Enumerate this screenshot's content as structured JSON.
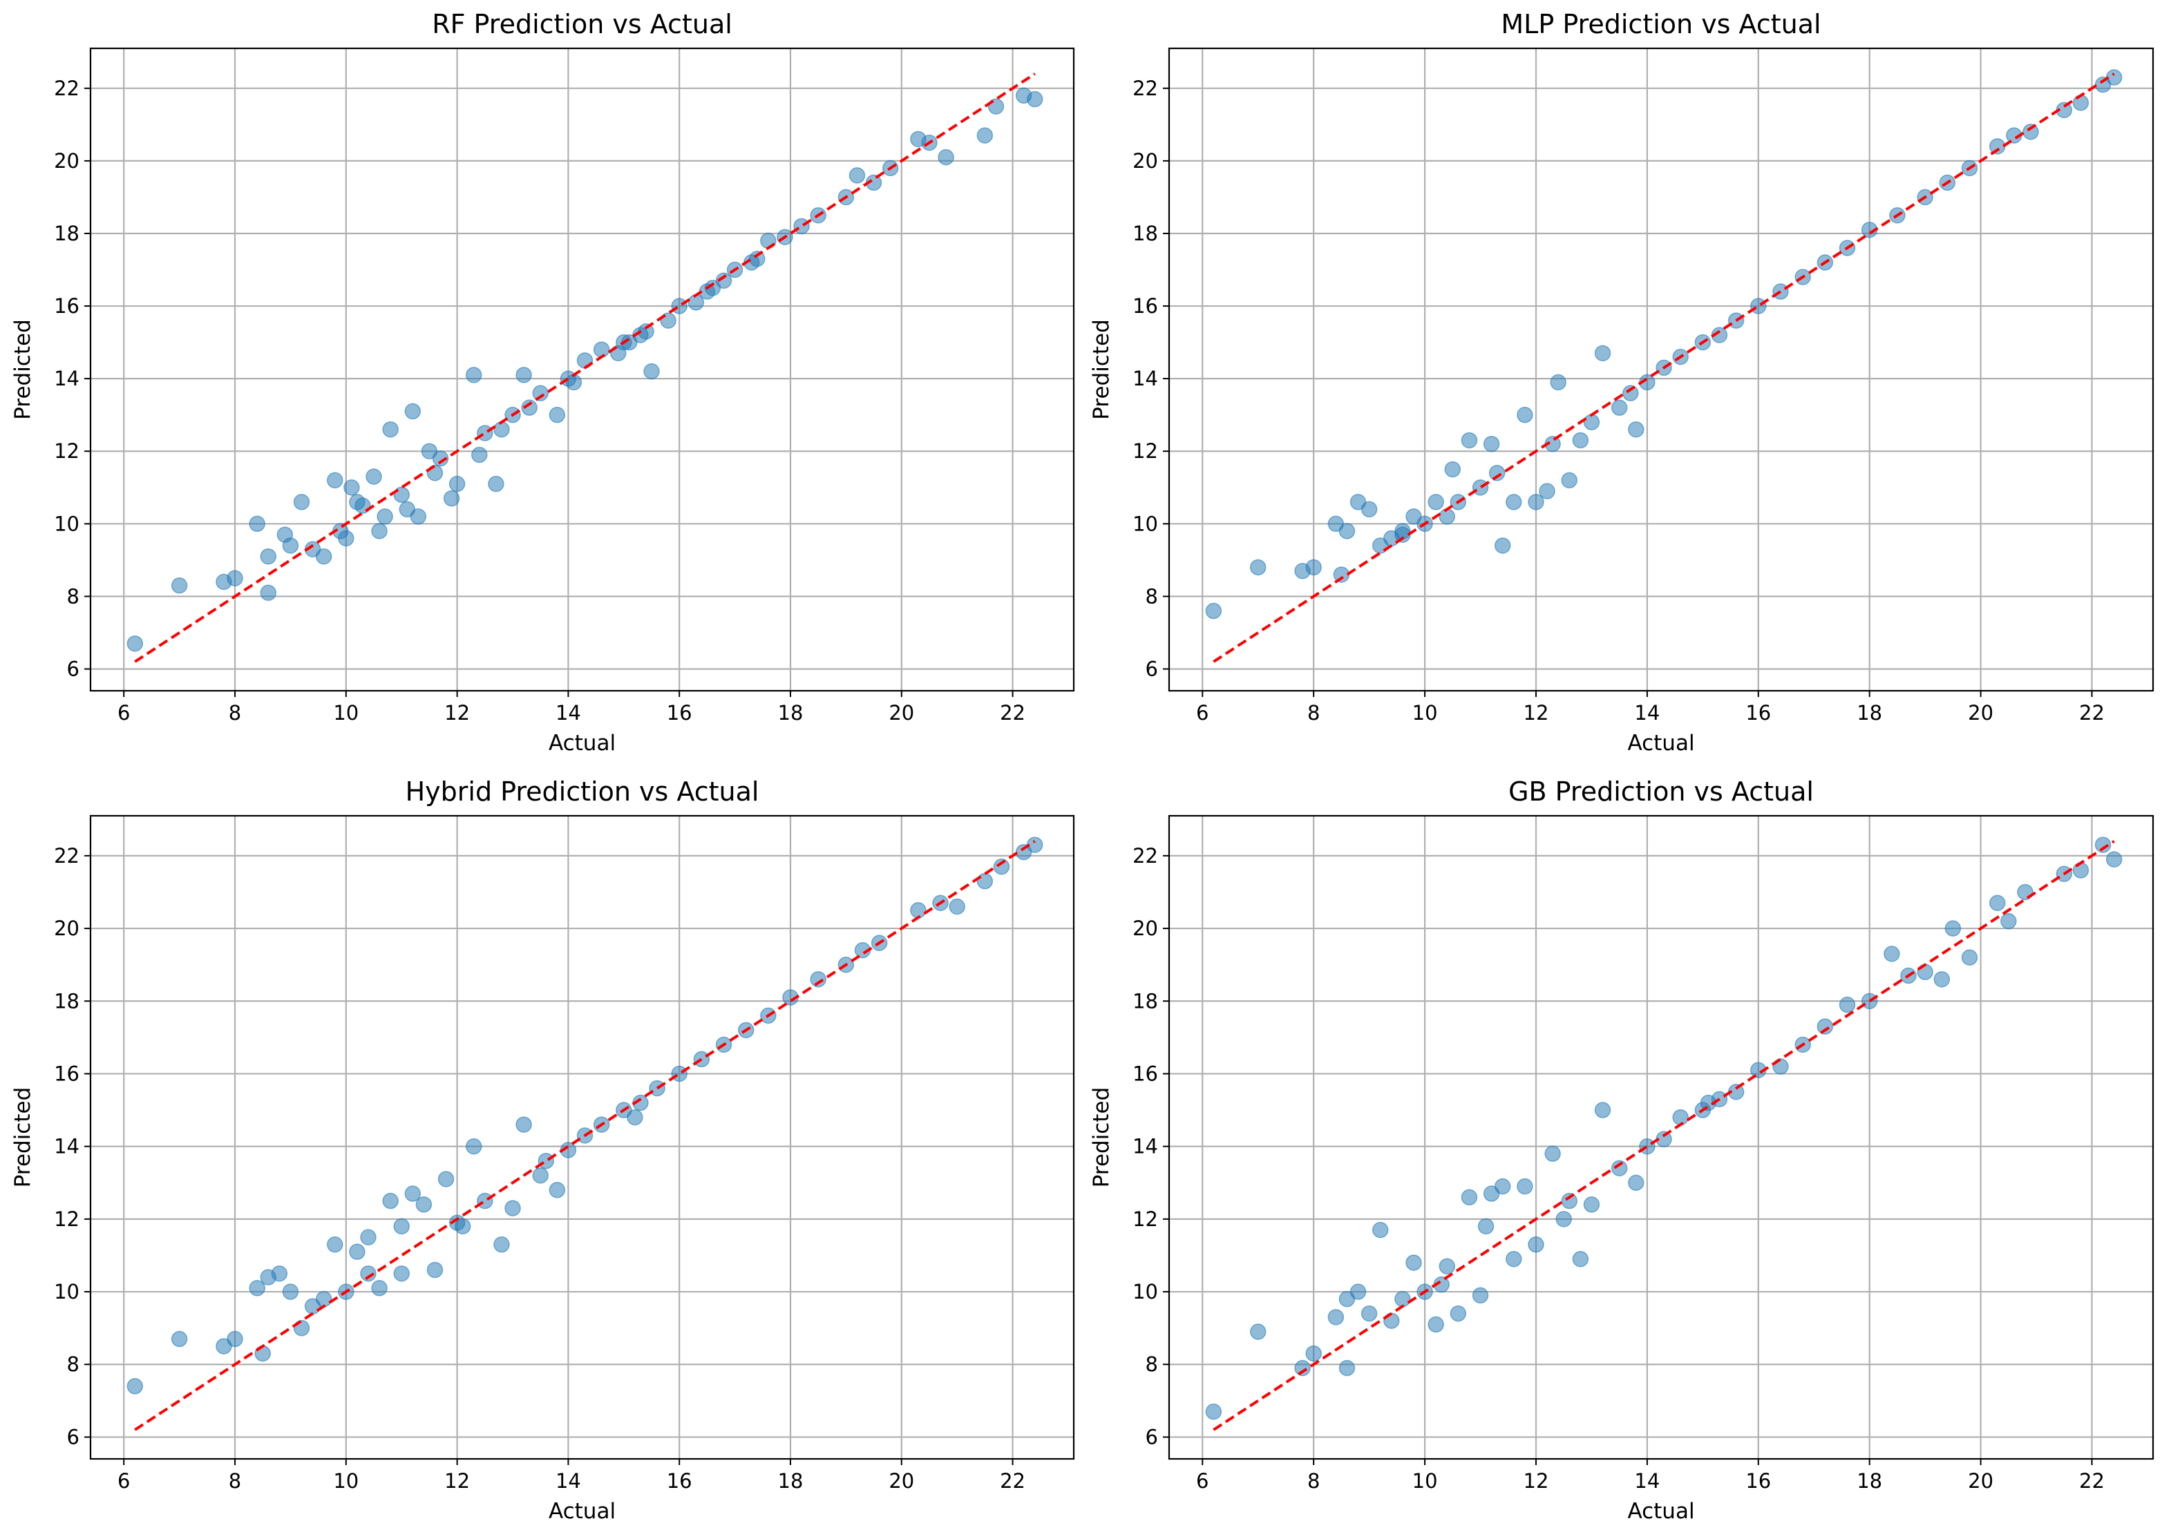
{
  "chart_data": [
    {
      "type": "scatter",
      "title": "RF Prediction vs Actual",
      "xlabel": "Actual",
      "ylabel": "Predicted",
      "xlim": [
        5.4,
        23.1
      ],
      "ylim": [
        5.4,
        23.1
      ],
      "xticks": [
        6,
        8,
        10,
        12,
        14,
        16,
        18,
        20,
        22
      ],
      "yticks": [
        6,
        8,
        10,
        12,
        14,
        16,
        18,
        20,
        22
      ],
      "grid": true,
      "reference_line": {
        "from": [
          6.2,
          6.2
        ],
        "to": [
          22.4,
          22.4
        ],
        "style": "dashed",
        "color": "#ff0000"
      },
      "x": [
        6.2,
        7.0,
        7.8,
        8.0,
        8.4,
        8.6,
        8.6,
        8.9,
        9.2,
        9.4,
        9.6,
        9.8,
        10.0,
        10.1,
        10.3,
        10.5,
        10.6,
        10.8,
        11.0,
        11.2,
        11.3,
        11.5,
        11.7,
        11.9,
        12.0,
        12.3,
        12.5,
        12.7,
        13.0,
        13.2,
        13.5,
        13.8,
        14.0,
        14.3,
        14.6,
        14.9,
        15.0,
        15.3,
        15.5,
        15.8,
        16.0,
        16.3,
        16.5,
        16.8,
        17.0,
        17.3,
        17.6,
        17.9,
        18.2,
        18.5,
        19.0,
        19.2,
        19.5,
        19.8,
        20.3,
        20.5,
        20.8,
        21.5,
        21.7,
        22.2,
        22.4,
        9.0,
        9.9,
        10.2,
        11.6,
        12.4,
        13.3,
        14.1,
        15.4,
        16.6,
        17.4,
        10.7,
        11.1,
        12.8,
        15.1
      ],
      "y": [
        6.7,
        8.3,
        8.4,
        8.5,
        10.0,
        9.1,
        8.1,
        9.7,
        10.6,
        9.3,
        9.1,
        11.2,
        9.6,
        11.0,
        10.5,
        11.3,
        9.8,
        12.6,
        10.8,
        13.1,
        10.2,
        12.0,
        11.8,
        10.7,
        11.1,
        14.1,
        12.5,
        11.1,
        13.0,
        14.1,
        13.6,
        13.0,
        14.0,
        14.5,
        14.8,
        14.7,
        15.0,
        15.2,
        14.2,
        15.6,
        16.0,
        16.1,
        16.4,
        16.7,
        17.0,
        17.2,
        17.8,
        17.9,
        18.2,
        18.5,
        19.0,
        19.6,
        19.4,
        19.8,
        20.6,
        20.5,
        20.1,
        20.7,
        21.5,
        21.8,
        21.7,
        9.4,
        9.8,
        10.6,
        11.4,
        11.9,
        13.2,
        13.9,
        15.3,
        16.5,
        17.3,
        10.2,
        10.4,
        12.6,
        15.0
      ]
    },
    {
      "type": "scatter",
      "title": "MLP Prediction vs Actual",
      "xlabel": "Actual",
      "ylabel": "Predicted",
      "xlim": [
        5.4,
        23.1
      ],
      "ylim": [
        5.4,
        23.1
      ],
      "xticks": [
        6,
        8,
        10,
        12,
        14,
        16,
        18,
        20,
        22
      ],
      "yticks": [
        6,
        8,
        10,
        12,
        14,
        16,
        18,
        20,
        22
      ],
      "grid": true,
      "reference_line": {
        "from": [
          6.2,
          6.2
        ],
        "to": [
          22.4,
          22.4
        ],
        "style": "dashed",
        "color": "#ff0000"
      },
      "x": [
        6.2,
        7.0,
        7.8,
        8.0,
        8.4,
        8.5,
        8.6,
        8.8,
        9.0,
        9.2,
        9.4,
        9.6,
        9.8,
        10.0,
        10.2,
        10.4,
        10.6,
        10.8,
        11.0,
        11.2,
        11.4,
        11.6,
        11.8,
        12.0,
        12.2,
        12.4,
        12.6,
        12.8,
        13.0,
        13.2,
        13.5,
        13.8,
        14.0,
        14.3,
        14.6,
        15.0,
        15.3,
        15.6,
        16.0,
        16.4,
        16.8,
        17.2,
        17.6,
        18.0,
        18.5,
        19.0,
        19.4,
        19.8,
        20.3,
        20.6,
        20.9,
        21.5,
        21.8,
        22.2,
        22.4,
        10.5,
        11.3,
        12.3,
        13.7,
        9.6
      ],
      "y": [
        7.6,
        8.8,
        8.7,
        8.8,
        10.0,
        8.6,
        9.8,
        10.6,
        10.4,
        9.4,
        9.6,
        9.8,
        10.2,
        10.0,
        10.6,
        10.2,
        10.6,
        12.3,
        11.0,
        12.2,
        9.4,
        10.6,
        13.0,
        10.6,
        10.9,
        13.9,
        11.2,
        12.3,
        12.8,
        14.7,
        13.2,
        12.6,
        13.9,
        14.3,
        14.6,
        15.0,
        15.2,
        15.6,
        16.0,
        16.4,
        16.8,
        17.2,
        17.6,
        18.1,
        18.5,
        19.0,
        19.4,
        19.8,
        20.4,
        20.7,
        20.8,
        21.4,
        21.6,
        22.1,
        22.3,
        11.5,
        11.4,
        12.2,
        13.6,
        9.7
      ]
    },
    {
      "type": "scatter",
      "title": "Hybrid Prediction vs Actual",
      "xlabel": "Actual",
      "ylabel": "Predicted",
      "xlim": [
        5.4,
        23.1
      ],
      "ylim": [
        5.4,
        23.1
      ],
      "xticks": [
        6,
        8,
        10,
        12,
        14,
        16,
        18,
        20,
        22
      ],
      "yticks": [
        6,
        8,
        10,
        12,
        14,
        16,
        18,
        20,
        22
      ],
      "grid": true,
      "reference_line": {
        "from": [
          6.2,
          6.2
        ],
        "to": [
          22.4,
          22.4
        ],
        "style": "dashed",
        "color": "#ff0000"
      },
      "x": [
        6.2,
        7.0,
        7.8,
        8.0,
        8.4,
        8.5,
        8.6,
        8.8,
        9.0,
        9.2,
        9.4,
        9.6,
        9.8,
        10.0,
        10.2,
        10.4,
        10.6,
        10.8,
        11.0,
        11.2,
        11.4,
        11.6,
        11.8,
        12.0,
        12.3,
        12.5,
        12.8,
        13.0,
        13.2,
        13.5,
        13.8,
        14.0,
        14.3,
        14.6,
        15.0,
        15.3,
        15.6,
        16.0,
        16.4,
        16.8,
        17.2,
        17.6,
        18.0,
        18.5,
        19.0,
        19.3,
        19.6,
        20.3,
        20.7,
        21.0,
        21.5,
        21.8,
        22.2,
        22.4,
        10.4,
        11.0,
        12.1,
        13.6,
        15.2
      ],
      "y": [
        7.4,
        8.7,
        8.5,
        8.7,
        10.1,
        8.3,
        10.4,
        10.5,
        10.0,
        9.0,
        9.6,
        9.8,
        11.3,
        10.0,
        11.1,
        10.5,
        10.1,
        12.5,
        10.5,
        12.7,
        12.4,
        10.6,
        13.1,
        11.9,
        14.0,
        12.5,
        11.3,
        12.3,
        14.6,
        13.2,
        12.8,
        13.9,
        14.3,
        14.6,
        15.0,
        15.2,
        15.6,
        16.0,
        16.4,
        16.8,
        17.2,
        17.6,
        18.1,
        18.6,
        19.0,
        19.4,
        19.6,
        20.5,
        20.7,
        20.6,
        21.3,
        21.7,
        22.1,
        22.3,
        11.5,
        11.8,
        11.8,
        13.6,
        14.8
      ]
    },
    {
      "type": "scatter",
      "title": "GB Prediction vs Actual",
      "xlabel": "Actual",
      "ylabel": "Predicted",
      "xlim": [
        5.4,
        23.1
      ],
      "ylim": [
        5.4,
        23.1
      ],
      "xticks": [
        6,
        8,
        10,
        12,
        14,
        16,
        18,
        20,
        22
      ],
      "yticks": [
        6,
        8,
        10,
        12,
        14,
        16,
        18,
        20,
        22
      ],
      "grid": true,
      "reference_line": {
        "from": [
          6.2,
          6.2
        ],
        "to": [
          22.4,
          22.4
        ],
        "style": "dashed",
        "color": "#ff0000"
      },
      "x": [
        6.2,
        7.0,
        7.8,
        8.0,
        8.4,
        8.6,
        8.6,
        8.8,
        9.0,
        9.2,
        9.4,
        9.6,
        9.8,
        10.0,
        10.2,
        10.4,
        10.6,
        10.8,
        11.0,
        11.2,
        11.4,
        11.6,
        11.8,
        12.0,
        12.3,
        12.5,
        12.8,
        13.0,
        13.2,
        13.5,
        13.8,
        14.0,
        14.3,
        14.6,
        15.0,
        15.3,
        15.6,
        16.0,
        16.4,
        16.8,
        17.2,
        17.6,
        18.0,
        18.4,
        18.7,
        19.0,
        19.3,
        19.5,
        19.8,
        20.3,
        20.5,
        20.8,
        21.5,
        21.8,
        22.2,
        22.4,
        10.3,
        11.1,
        12.6,
        15.1
      ],
      "y": [
        6.7,
        8.9,
        7.9,
        8.3,
        9.3,
        7.9,
        9.8,
        10.0,
        9.4,
        11.7,
        9.2,
        9.8,
        10.8,
        10.0,
        9.1,
        10.7,
        9.4,
        12.6,
        9.9,
        12.7,
        12.9,
        10.9,
        12.9,
        11.3,
        13.8,
        12.0,
        10.9,
        12.4,
        15.0,
        13.4,
        13.0,
        14.0,
        14.2,
        14.8,
        15.0,
        15.3,
        15.5,
        16.1,
        16.2,
        16.8,
        17.3,
        17.9,
        18.0,
        19.3,
        18.7,
        18.8,
        18.6,
        20.0,
        19.2,
        20.7,
        20.2,
        21.0,
        21.5,
        21.6,
        22.3,
        21.9,
        10.2,
        11.8,
        12.5,
        15.2
      ]
    }
  ]
}
